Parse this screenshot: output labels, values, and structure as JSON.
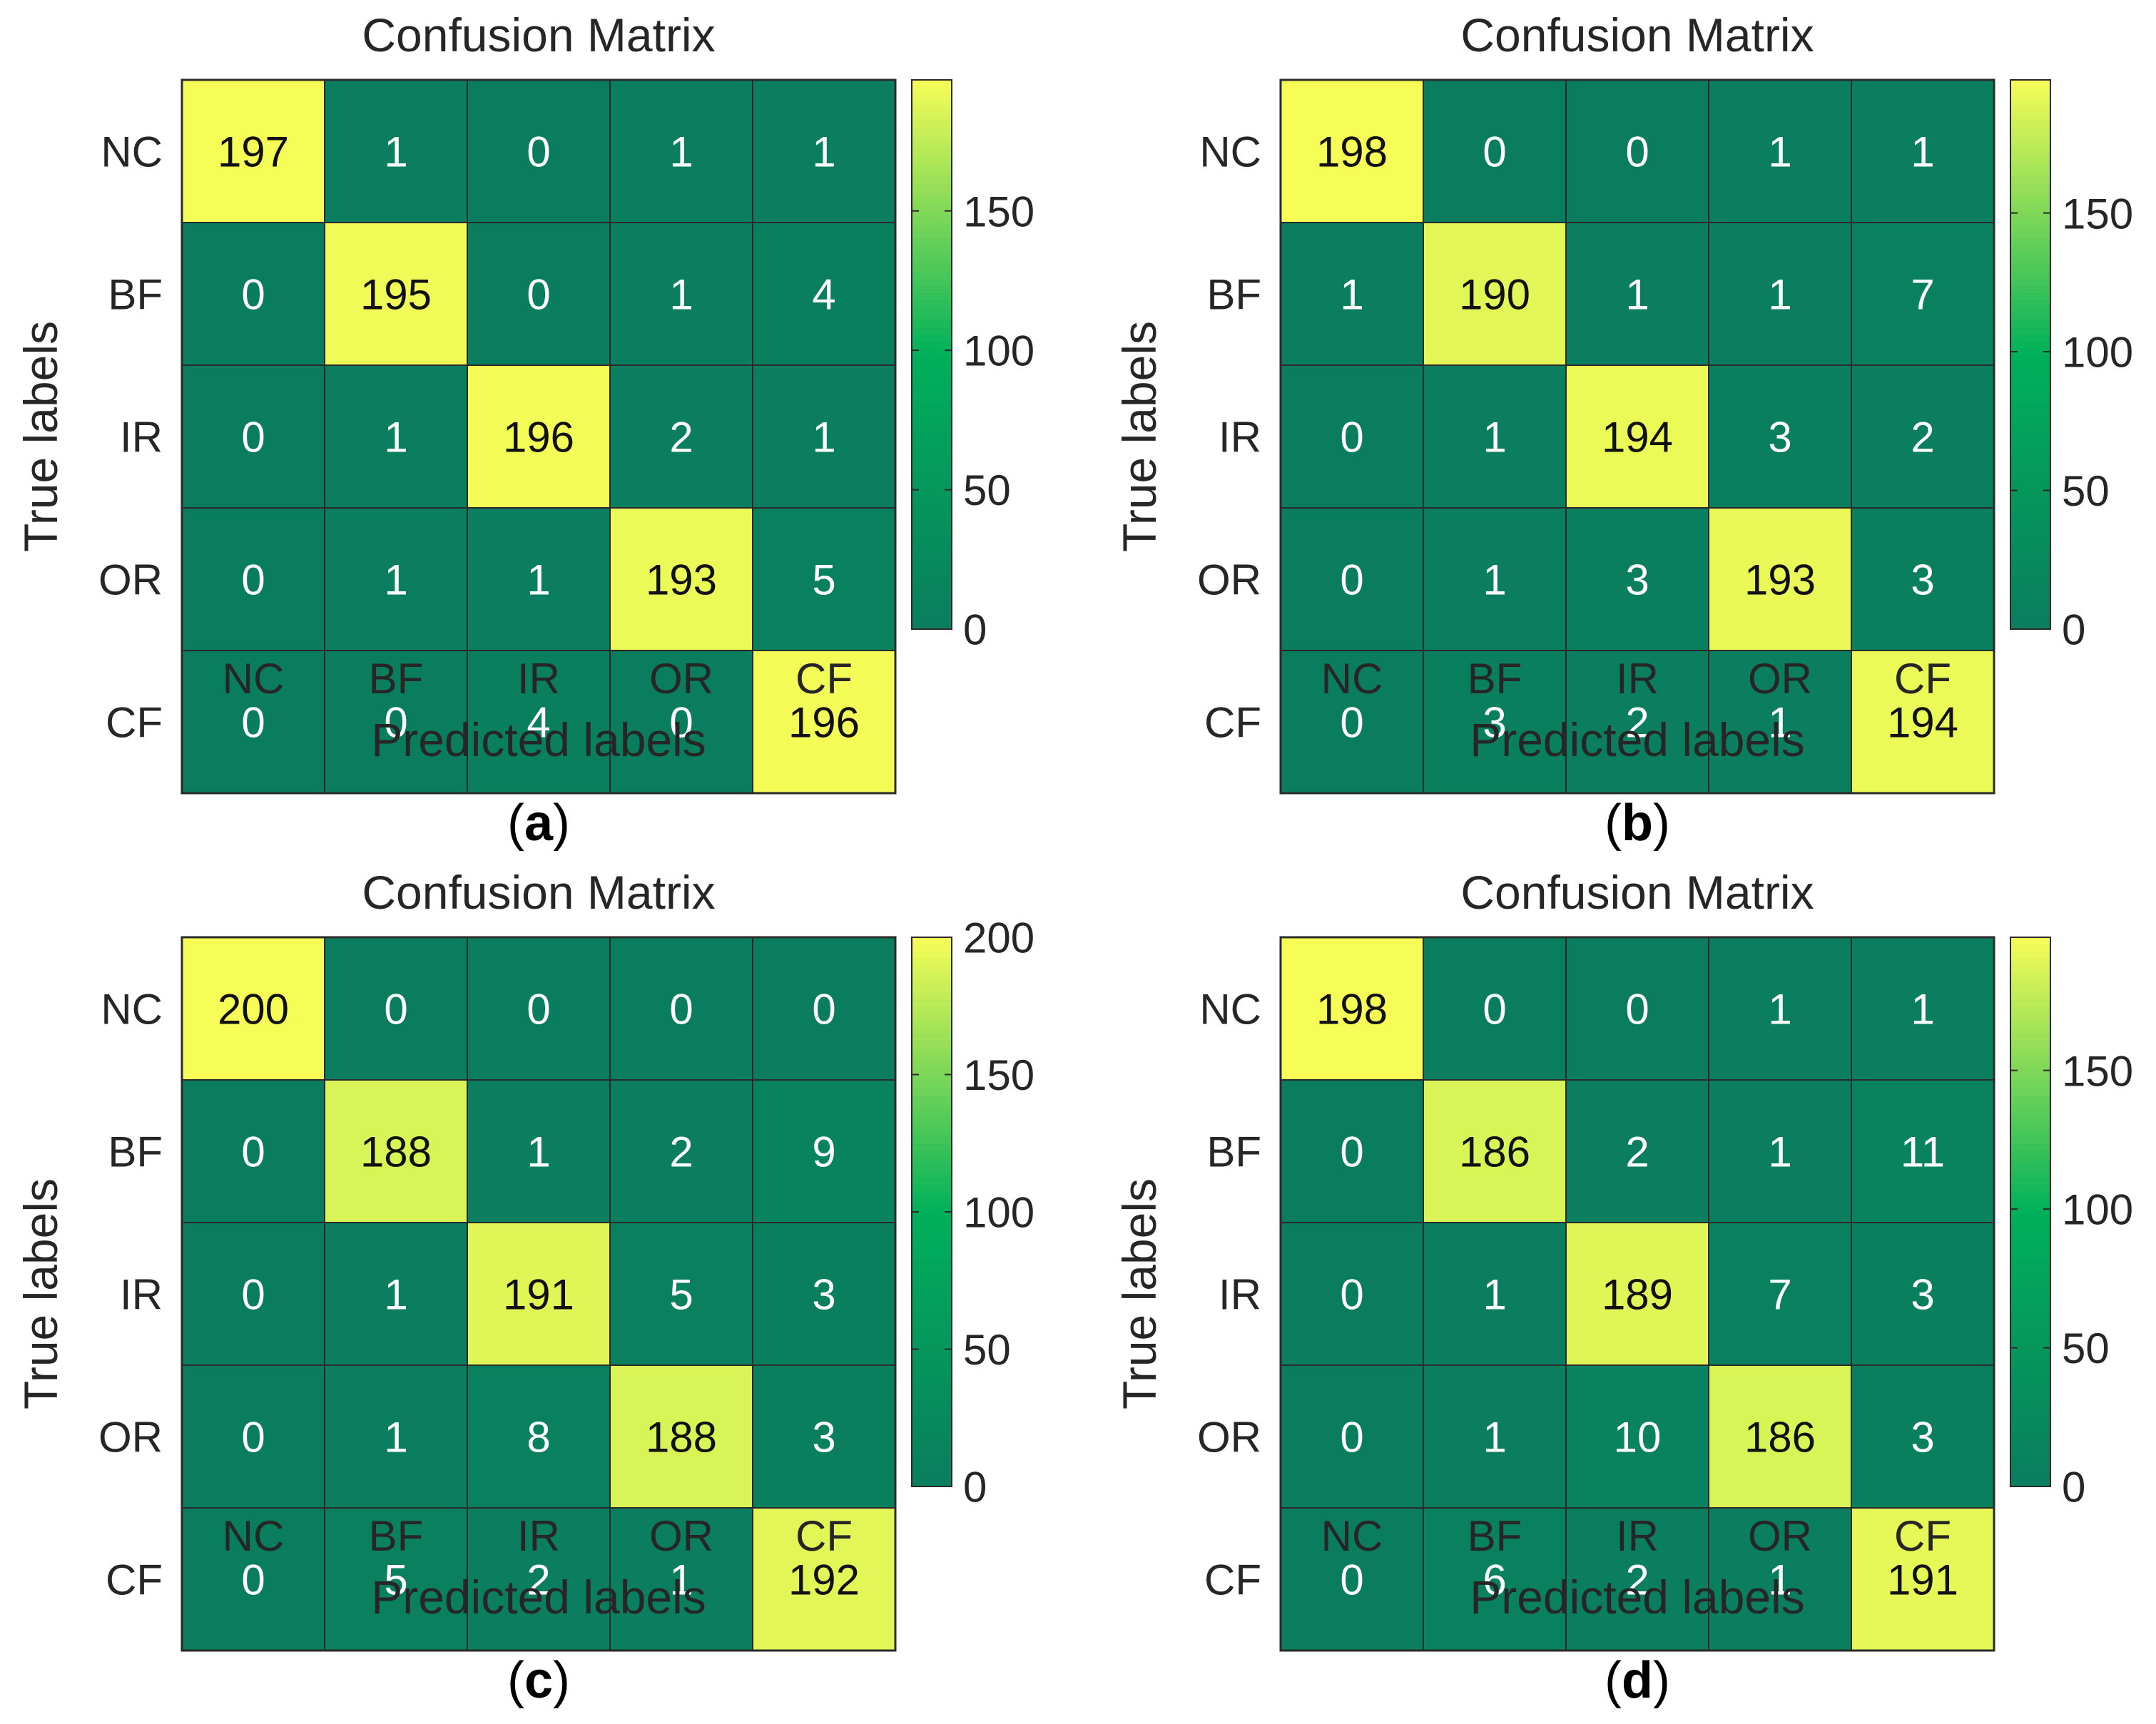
{
  "colors": {
    "low": "#0a7d5e",
    "mid": "#00b05a",
    "high": "#f6fd57",
    "grid": "#2a2a2a",
    "text": "#262626"
  },
  "chart_data": [
    {
      "type": "heatmap",
      "caption": "a",
      "title": "Confusion Matrix",
      "xlabel": "Predicted labels",
      "ylabel": "True labels",
      "x_categories": [
        "NC",
        "BF",
        "IR",
        "OR",
        "CF"
      ],
      "y_categories": [
        "NC",
        "BF",
        "IR",
        "OR",
        "CF"
      ],
      "values": [
        [
          197,
          1,
          0,
          1,
          1
        ],
        [
          0,
          195,
          0,
          1,
          4
        ],
        [
          0,
          1,
          196,
          2,
          1
        ],
        [
          0,
          1,
          1,
          193,
          5
        ],
        [
          0,
          0,
          4,
          0,
          196
        ]
      ],
      "colorbar": {
        "range": [
          0,
          197
        ],
        "ticks": [
          0,
          50,
          100,
          150
        ]
      }
    },
    {
      "type": "heatmap",
      "caption": "b",
      "title": "Confusion Matrix",
      "xlabel": "Predicted labels",
      "ylabel": "True labels",
      "x_categories": [
        "NC",
        "BF",
        "IR",
        "OR",
        "CF"
      ],
      "y_categories": [
        "NC",
        "BF",
        "IR",
        "OR",
        "CF"
      ],
      "values": [
        [
          198,
          0,
          0,
          1,
          1
        ],
        [
          1,
          190,
          1,
          1,
          7
        ],
        [
          0,
          1,
          194,
          3,
          2
        ],
        [
          0,
          1,
          3,
          193,
          3
        ],
        [
          0,
          3,
          2,
          1,
          194
        ]
      ],
      "colorbar": {
        "range": [
          0,
          198
        ],
        "ticks": [
          0,
          50,
          100,
          150
        ]
      }
    },
    {
      "type": "heatmap",
      "caption": "c",
      "title": "Confusion Matrix",
      "xlabel": "Predicted labels",
      "ylabel": "True labels",
      "x_categories": [
        "NC",
        "BF",
        "IR",
        "OR",
        "CF"
      ],
      "y_categories": [
        "NC",
        "BF",
        "IR",
        "OR",
        "CF"
      ],
      "values": [
        [
          200,
          0,
          0,
          0,
          0
        ],
        [
          0,
          188,
          1,
          2,
          9
        ],
        [
          0,
          1,
          191,
          5,
          3
        ],
        [
          0,
          1,
          8,
          188,
          3
        ],
        [
          0,
          5,
          2,
          1,
          192
        ]
      ],
      "colorbar": {
        "range": [
          0,
          200
        ],
        "ticks": [
          0,
          50,
          100,
          150,
          200
        ]
      }
    },
    {
      "type": "heatmap",
      "caption": "d",
      "title": "Confusion Matrix",
      "xlabel": "Predicted labels",
      "ylabel": "True labels",
      "x_categories": [
        "NC",
        "BF",
        "IR",
        "OR",
        "CF"
      ],
      "y_categories": [
        "NC",
        "BF",
        "IR",
        "OR",
        "CF"
      ],
      "values": [
        [
          198,
          0,
          0,
          1,
          1
        ],
        [
          0,
          186,
          2,
          1,
          11
        ],
        [
          0,
          1,
          189,
          7,
          3
        ],
        [
          0,
          1,
          10,
          186,
          3
        ],
        [
          0,
          6,
          2,
          1,
          191
        ]
      ],
      "colorbar": {
        "range": [
          0,
          198
        ],
        "ticks": [
          0,
          50,
          100,
          150
        ]
      }
    }
  ]
}
